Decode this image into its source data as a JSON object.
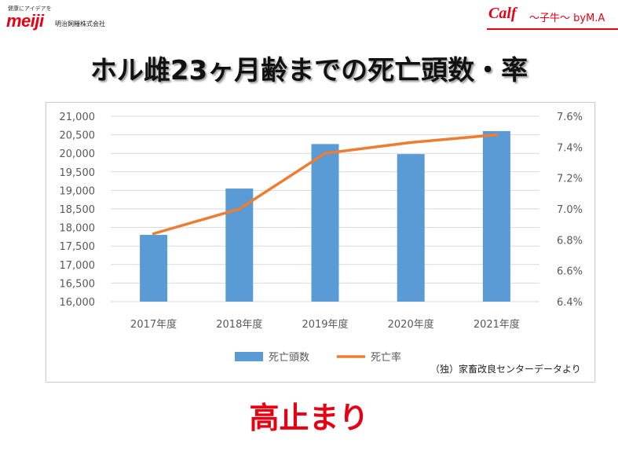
{
  "logo": {
    "tagline": "健康にアイデアを",
    "word": "meiji",
    "company": "明治飼糧株式会社"
  },
  "brand": {
    "calf": "Calf",
    "rest": "〜子牛〜 byM.A"
  },
  "title": "ホル雌23ヶ月齢までの死亡頭数・率",
  "source_note": "（独）家畜改良センターデータより",
  "footer": "高止まり",
  "colors": {
    "bar": "#5b9bd5",
    "line": "#ed7d31",
    "accent": "#e60012"
  },
  "chart_data": {
    "type": "bar",
    "categories": [
      "2017年度",
      "2018年度",
      "2019年度",
      "2020年度",
      "2021年度"
    ],
    "series": [
      {
        "name": "死亡頭数",
        "type": "bar",
        "axis": "left",
        "values": [
          17800,
          19050,
          20250,
          19980,
          20600
        ]
      },
      {
        "name": "死亡率",
        "type": "line",
        "axis": "right",
        "values": [
          6.84,
          7.0,
          7.36,
          7.43,
          7.48
        ]
      }
    ],
    "y_left": {
      "min": 16000,
      "max": 21000,
      "ticks": [
        "16,000",
        "16,500",
        "17,000",
        "17,500",
        "18,000",
        "18,500",
        "19,000",
        "19,500",
        "20,000",
        "20,500",
        "21,000"
      ]
    },
    "y_right": {
      "min": 6.4,
      "max": 7.6,
      "ticks": [
        "6.4%",
        "6.6%",
        "6.8%",
        "7.0%",
        "7.2%",
        "7.4%",
        "7.6%"
      ]
    },
    "grid": true,
    "legend_position": "bottom"
  }
}
